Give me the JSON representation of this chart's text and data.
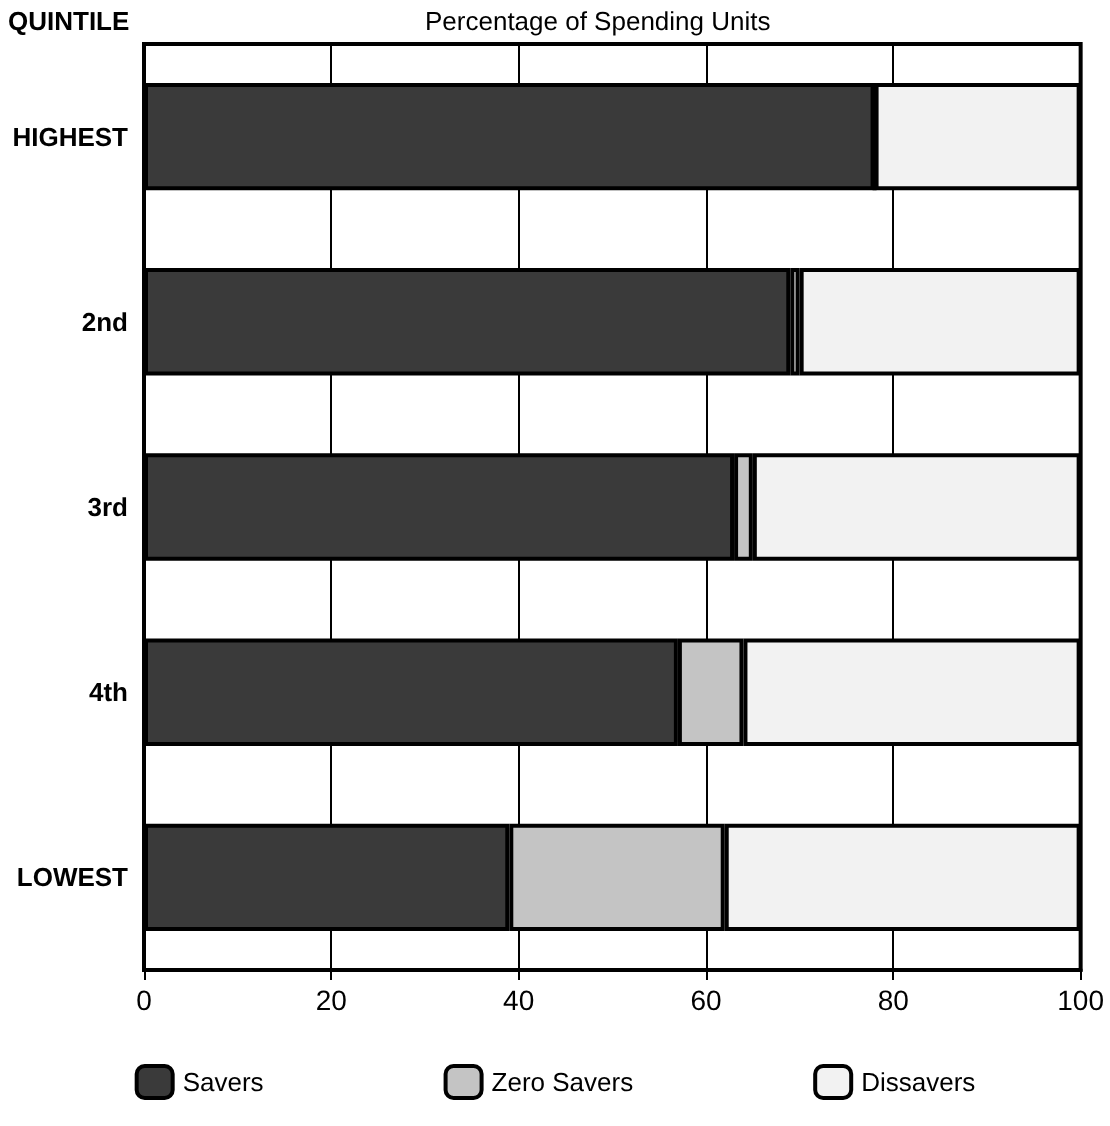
{
  "chart_data": {
    "type": "bar",
    "orientation": "horizontal",
    "stacked": true,
    "xlabel": "Percentage of Spending Units",
    "ylabel": "QUINTILE",
    "categories": [
      "HIGHEST",
      "2nd",
      "3rd",
      "4th",
      "LOWEST"
    ],
    "series": [
      {
        "name": "Savers",
        "color": "#3a3a3a",
        "values": [
          78,
          69,
          63,
          57,
          39
        ]
      },
      {
        "name": "Zero Savers",
        "color": "#c4c4c4",
        "values": [
          0,
          1,
          2,
          7,
          23
        ]
      },
      {
        "name": "Dissavers",
        "color": "#f2f2f2",
        "values": [
          22,
          30,
          35,
          36,
          38
        ]
      }
    ],
    "xlim": [
      0,
      100
    ],
    "xticks": [
      0,
      20,
      40,
      60,
      80,
      100
    ],
    "grid": "x",
    "legend": "bottom"
  }
}
